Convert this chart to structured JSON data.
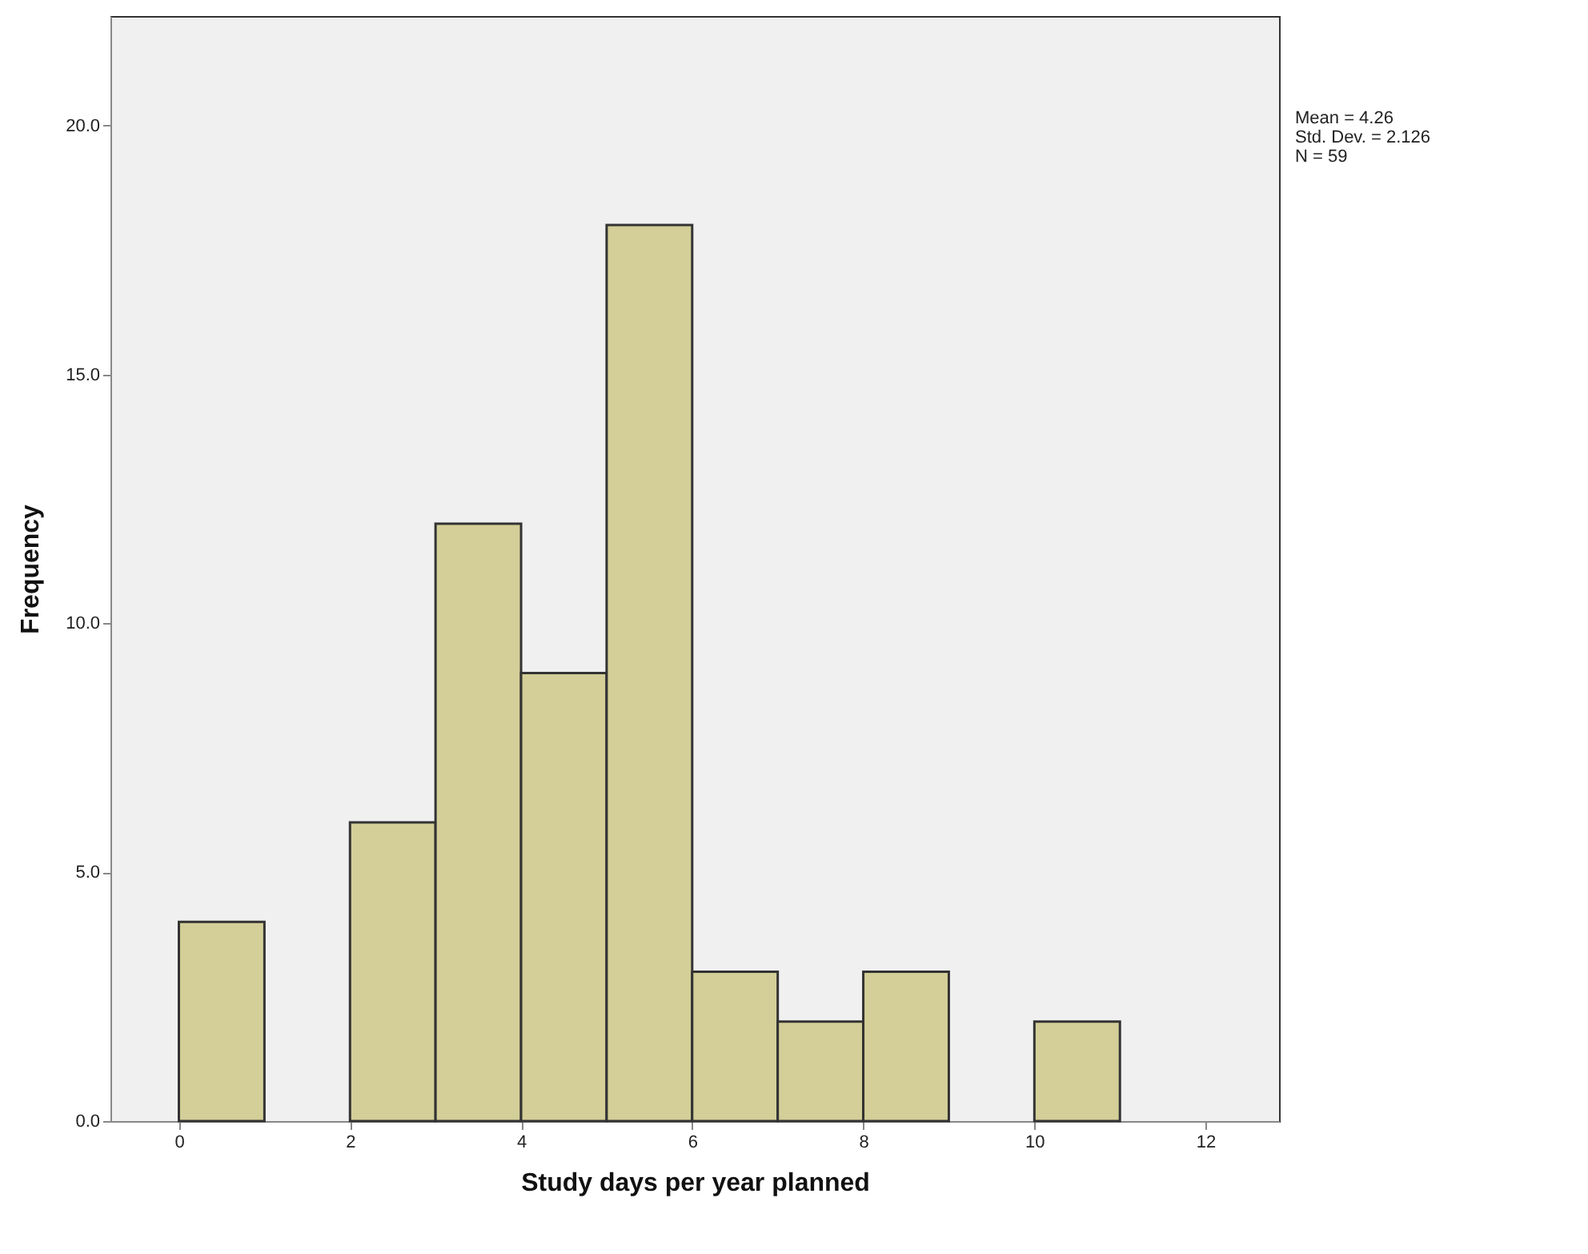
{
  "chart_data": {
    "type": "histogram",
    "xlabel": "Study days per year planned",
    "ylabel": "Frequency",
    "bins": [
      0,
      1,
      2,
      3,
      4,
      5,
      6,
      7,
      8,
      9,
      10,
      11
    ],
    "values": [
      4,
      0,
      6,
      12,
      9,
      18,
      3,
      2,
      3,
      0,
      2
    ],
    "color": "#d4cf98",
    "xlim": [
      -0.8,
      12.86
    ],
    "xticks": [
      0,
      2,
      4,
      6,
      8,
      10,
      12
    ],
    "ylim": [
      0,
      22.2
    ],
    "yticks": [
      {
        "value": 0,
        "label": "0.0"
      },
      {
        "value": 5,
        "label": "5.0"
      },
      {
        "value": 10,
        "label": "10.0"
      },
      {
        "value": 15,
        "label": "15.0"
      },
      {
        "value": 20,
        "label": "20.0"
      }
    ],
    "grid": false,
    "annotations": [
      "Mean = 4.26",
      "Std. Dev. = 2.126",
      "N = 59"
    ]
  }
}
